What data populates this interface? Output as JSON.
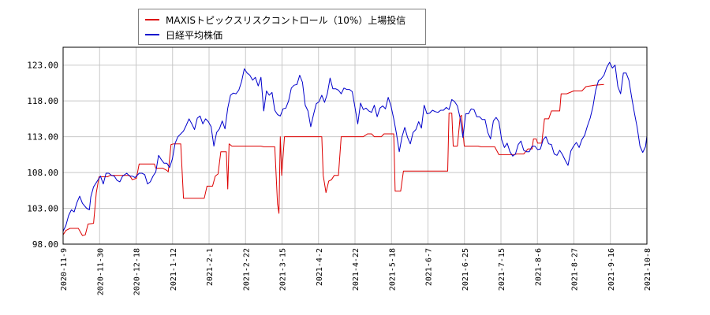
{
  "chart_data": {
    "type": "line",
    "title": "",
    "xlabel": "",
    "ylabel": "",
    "ylim": [
      98.0,
      125.5
    ],
    "grid": true,
    "legend_position": "top-left",
    "x_tick_labels": [
      "2020-11-9",
      "2020-11-30",
      "2020-12-18",
      "2021-1-12",
      "2021-2-1",
      "2021-2-22",
      "2021-3-15",
      "2021-4-2",
      "2021-4-22",
      "2021-5-18",
      "2021-6-7",
      "2021-6-25",
      "2021-7-15",
      "2021-8-6",
      "2021-8-27",
      "2021-9-16",
      "2021-10-8"
    ],
    "y_tick_labels": [
      "98.00",
      "103.00",
      "108.00",
      "113.00",
      "118.00",
      "123.00"
    ],
    "y_ticks": [
      98,
      103,
      108,
      113,
      118,
      123
    ],
    "series": [
      {
        "name": "MAXISトピックスリスクコントロール（10%）上場投信",
        "color": "#dd0000",
        "points": [
          [
            0,
            99.3
          ],
          [
            0.2,
            99.9
          ],
          [
            0.5,
            100.2
          ],
          [
            1.1,
            100.2
          ],
          [
            1.4,
            99.2
          ],
          [
            1.6,
            99.3
          ],
          [
            1.8,
            100.8
          ],
          [
            2.2,
            100.9
          ],
          [
            2.4,
            105.2
          ],
          [
            2.6,
            107.4
          ],
          [
            3.2,
            107.4
          ],
          [
            3.4,
            107.6
          ],
          [
            4.8,
            107.6
          ],
          [
            5.0,
            107.0
          ],
          [
            5.3,
            107.2
          ],
          [
            5.5,
            109.2
          ],
          [
            6.6,
            109.2
          ],
          [
            6.7,
            108.6
          ],
          [
            7.0,
            108.6
          ],
          [
            7.2,
            108.6
          ],
          [
            7.5,
            108.3
          ],
          [
            7.6,
            108.1
          ],
          [
            7.8,
            111.9
          ],
          [
            8.0,
            112.0
          ],
          [
            8.5,
            112.0
          ],
          [
            8.7,
            104.4
          ],
          [
            10.2,
            104.4
          ],
          [
            10.4,
            106.1
          ],
          [
            10.8,
            106.1
          ],
          [
            11.0,
            107.5
          ],
          [
            11.2,
            107.8
          ],
          [
            11.4,
            110.9
          ],
          [
            11.8,
            110.9
          ],
          [
            11.9,
            105.7
          ],
          [
            12.0,
            112.0
          ],
          [
            12.2,
            111.7
          ],
          [
            14.3,
            111.7
          ],
          [
            14.5,
            111.6
          ],
          [
            15.3,
            111.6
          ],
          [
            15.5,
            103.6
          ],
          [
            15.6,
            102.3
          ],
          [
            15.7,
            113.0
          ],
          [
            15.8,
            107.6
          ],
          [
            16.0,
            113.0
          ],
          [
            17.5,
            113.0
          ],
          [
            18.7,
            113.0
          ],
          [
            18.8,
            107.6
          ],
          [
            19.0,
            105.2
          ],
          [
            19.2,
            106.8
          ],
          [
            19.4,
            107.0
          ],
          [
            19.6,
            107.6
          ],
          [
            19.9,
            107.6
          ],
          [
            20.1,
            113.0
          ],
          [
            21.7,
            113.0
          ],
          [
            22.0,
            113.4
          ],
          [
            22.3,
            113.4
          ],
          [
            22.5,
            113.0
          ],
          [
            23.0,
            113.0
          ],
          [
            23.2,
            113.4
          ],
          [
            23.9,
            113.4
          ],
          [
            24.0,
            105.4
          ],
          [
            24.4,
            105.4
          ],
          [
            24.6,
            108.2
          ],
          [
            27.8,
            108.2
          ],
          [
            27.9,
            116.3
          ],
          [
            28.1,
            116.3
          ],
          [
            28.2,
            111.7
          ],
          [
            28.5,
            111.7
          ],
          [
            28.7,
            115.8
          ],
          [
            28.8,
            116.0
          ],
          [
            29.0,
            111.7
          ],
          [
            30.0,
            111.7
          ],
          [
            30.2,
            111.6
          ],
          [
            31.2,
            111.6
          ],
          [
            31.5,
            110.5
          ],
          [
            32.6,
            110.5
          ],
          [
            32.8,
            110.6
          ],
          [
            33.3,
            110.6
          ],
          [
            33.6,
            111.3
          ],
          [
            33.9,
            111.3
          ],
          [
            34.0,
            112.7
          ],
          [
            34.2,
            112.7
          ],
          [
            34.3,
            112.1
          ],
          [
            34.6,
            112.1
          ],
          [
            34.8,
            115.5
          ],
          [
            35.1,
            115.5
          ],
          [
            35.3,
            116.6
          ],
          [
            35.5,
            116.6
          ],
          [
            35.9,
            116.6
          ],
          [
            36.0,
            119.0
          ],
          [
            36.4,
            119.0
          ],
          [
            36.9,
            119.4
          ],
          [
            37.5,
            119.4
          ],
          [
            37.8,
            120.0
          ],
          [
            38.4,
            120.2
          ],
          [
            39.1,
            120.3
          ]
        ]
      },
      {
        "name": "日経平均株価",
        "color": "#0000cc",
        "points": [
          [
            0,
            99.8
          ],
          [
            0.2,
            100.6
          ],
          [
            0.4,
            102.0
          ],
          [
            0.6,
            102.8
          ],
          [
            0.8,
            102.5
          ],
          [
            1.0,
            103.8
          ],
          [
            1.2,
            104.7
          ],
          [
            1.4,
            103.7
          ],
          [
            1.7,
            103.0
          ],
          [
            1.9,
            102.8
          ],
          [
            2.0,
            104.6
          ],
          [
            2.2,
            106.0
          ],
          [
            2.5,
            106.9
          ],
          [
            2.7,
            107.5
          ],
          [
            2.9,
            106.4
          ],
          [
            3.1,
            107.9
          ],
          [
            3.3,
            107.9
          ],
          [
            3.5,
            107.6
          ],
          [
            3.7,
            107.5
          ],
          [
            3.9,
            106.9
          ],
          [
            4.1,
            106.7
          ],
          [
            4.3,
            107.5
          ],
          [
            4.6,
            107.9
          ],
          [
            4.8,
            107.5
          ],
          [
            5.0,
            107.5
          ],
          [
            5.2,
            107.3
          ],
          [
            5.5,
            107.9
          ],
          [
            5.7,
            107.9
          ],
          [
            5.9,
            107.7
          ],
          [
            6.1,
            106.4
          ],
          [
            6.3,
            106.7
          ],
          [
            6.5,
            107.5
          ],
          [
            6.7,
            108.1
          ],
          [
            6.9,
            110.4
          ],
          [
            7.1,
            109.8
          ],
          [
            7.3,
            109.3
          ],
          [
            7.5,
            109.3
          ],
          [
            7.7,
            108.7
          ],
          [
            7.9,
            109.9
          ],
          [
            8.1,
            112.1
          ],
          [
            8.3,
            113.0
          ],
          [
            8.5,
            113.4
          ],
          [
            8.7,
            113.8
          ],
          [
            8.9,
            114.6
          ],
          [
            9.1,
            115.5
          ],
          [
            9.3,
            114.8
          ],
          [
            9.5,
            114.0
          ],
          [
            9.7,
            115.6
          ],
          [
            9.9,
            115.9
          ],
          [
            10.1,
            114.8
          ],
          [
            10.3,
            115.5
          ],
          [
            10.5,
            115.1
          ],
          [
            10.7,
            114.4
          ],
          [
            10.9,
            111.7
          ],
          [
            11.1,
            113.6
          ],
          [
            11.3,
            114.1
          ],
          [
            11.5,
            115.2
          ],
          [
            11.7,
            114.1
          ],
          [
            11.9,
            117.0
          ],
          [
            12.1,
            118.8
          ],
          [
            12.3,
            119.1
          ],
          [
            12.5,
            119.0
          ],
          [
            12.7,
            119.5
          ],
          [
            12.9,
            120.7
          ],
          [
            13.1,
            122.5
          ],
          [
            13.3,
            121.9
          ],
          [
            13.5,
            121.6
          ],
          [
            13.7,
            120.9
          ],
          [
            13.9,
            121.3
          ],
          [
            14.1,
            120.1
          ],
          [
            14.3,
            121.3
          ],
          [
            14.5,
            116.6
          ],
          [
            14.7,
            119.4
          ],
          [
            14.9,
            118.8
          ],
          [
            15.1,
            119.2
          ],
          [
            15.3,
            116.7
          ],
          [
            15.5,
            116.1
          ],
          [
            15.7,
            115.9
          ],
          [
            15.9,
            116.9
          ],
          [
            16.1,
            117.0
          ],
          [
            16.3,
            118.0
          ],
          [
            16.5,
            119.8
          ],
          [
            16.7,
            120.2
          ],
          [
            16.9,
            120.3
          ],
          [
            17.1,
            121.6
          ],
          [
            17.3,
            120.6
          ],
          [
            17.5,
            117.4
          ],
          [
            17.7,
            116.6
          ],
          [
            17.9,
            114.4
          ],
          [
            18.1,
            116.1
          ],
          [
            18.3,
            117.6
          ],
          [
            18.5,
            117.9
          ],
          [
            18.7,
            118.8
          ],
          [
            18.9,
            117.8
          ],
          [
            19.1,
            119.0
          ],
          [
            19.3,
            121.2
          ],
          [
            19.5,
            119.7
          ],
          [
            19.7,
            119.7
          ],
          [
            19.9,
            119.5
          ],
          [
            20.1,
            119.0
          ],
          [
            20.3,
            119.8
          ],
          [
            20.5,
            119.6
          ],
          [
            20.7,
            119.6
          ],
          [
            20.9,
            119.3
          ],
          [
            21.1,
            117.1
          ],
          [
            21.3,
            114.8
          ],
          [
            21.5,
            117.7
          ],
          [
            21.7,
            116.8
          ],
          [
            21.9,
            117.0
          ],
          [
            22.1,
            116.6
          ],
          [
            22.3,
            116.4
          ],
          [
            22.5,
            117.4
          ],
          [
            22.7,
            115.8
          ],
          [
            22.9,
            117.0
          ],
          [
            23.1,
            117.3
          ],
          [
            23.3,
            116.9
          ],
          [
            23.5,
            118.5
          ],
          [
            23.7,
            117.3
          ],
          [
            23.9,
            115.5
          ],
          [
            24.1,
            113.4
          ],
          [
            24.3,
            110.9
          ],
          [
            24.5,
            113.0
          ],
          [
            24.7,
            114.3
          ],
          [
            24.9,
            112.9
          ],
          [
            25.1,
            112.0
          ],
          [
            25.3,
            113.6
          ],
          [
            25.5,
            114.0
          ],
          [
            25.7,
            115.1
          ],
          [
            25.9,
            114.2
          ],
          [
            26.1,
            117.4
          ],
          [
            26.3,
            116.2
          ],
          [
            26.5,
            116.3
          ],
          [
            26.7,
            116.7
          ],
          [
            26.9,
            116.5
          ],
          [
            27.1,
            116.4
          ],
          [
            27.3,
            116.7
          ],
          [
            27.5,
            116.7
          ],
          [
            27.7,
            117.1
          ],
          [
            27.9,
            116.8
          ],
          [
            28.1,
            118.2
          ],
          [
            28.3,
            117.9
          ],
          [
            28.5,
            117.3
          ],
          [
            28.7,
            115.6
          ],
          [
            28.9,
            112.9
          ],
          [
            29.1,
            116.2
          ],
          [
            29.3,
            116.2
          ],
          [
            29.5,
            116.9
          ],
          [
            29.7,
            116.8
          ],
          [
            29.9,
            115.8
          ],
          [
            30.1,
            115.8
          ],
          [
            30.3,
            115.4
          ],
          [
            30.5,
            115.4
          ],
          [
            30.7,
            113.6
          ],
          [
            30.9,
            112.7
          ],
          [
            31.1,
            115.2
          ],
          [
            31.3,
            115.7
          ],
          [
            31.5,
            115.1
          ],
          [
            31.7,
            112.6
          ],
          [
            31.9,
            111.5
          ],
          [
            32.1,
            112.1
          ],
          [
            32.3,
            110.9
          ],
          [
            32.5,
            110.3
          ],
          [
            32.7,
            110.6
          ],
          [
            32.9,
            111.9
          ],
          [
            33.1,
            112.4
          ],
          [
            33.3,
            111.1
          ],
          [
            33.5,
            110.9
          ],
          [
            33.7,
            110.9
          ],
          [
            33.9,
            111.7
          ],
          [
            34.1,
            111.7
          ],
          [
            34.3,
            111.2
          ],
          [
            34.5,
            111.3
          ],
          [
            34.7,
            112.6
          ],
          [
            34.9,
            113.0
          ],
          [
            35.1,
            112.0
          ],
          [
            35.3,
            111.9
          ],
          [
            35.5,
            110.6
          ],
          [
            35.7,
            110.4
          ],
          [
            35.9,
            111.1
          ],
          [
            36.1,
            110.5
          ],
          [
            36.3,
            109.7
          ],
          [
            36.5,
            109.0
          ],
          [
            36.7,
            111.0
          ],
          [
            36.9,
            111.7
          ],
          [
            37.1,
            112.2
          ],
          [
            37.3,
            111.5
          ],
          [
            37.5,
            112.6
          ],
          [
            37.7,
            113.2
          ],
          [
            37.9,
            114.5
          ],
          [
            38.1,
            115.6
          ],
          [
            38.3,
            117.2
          ],
          [
            38.5,
            119.5
          ],
          [
            38.7,
            120.8
          ],
          [
            38.9,
            121.1
          ],
          [
            39.1,
            121.6
          ],
          [
            39.3,
            122.7
          ],
          [
            39.5,
            123.4
          ],
          [
            39.7,
            122.6
          ],
          [
            39.9,
            123.0
          ],
          [
            40.1,
            120.0
          ],
          [
            40.3,
            119.0
          ],
          [
            40.5,
            121.9
          ],
          [
            40.7,
            121.9
          ],
          [
            40.9,
            120.9
          ],
          [
            41.1,
            118.5
          ],
          [
            41.3,
            116.3
          ],
          [
            41.5,
            114.3
          ],
          [
            41.7,
            111.7
          ],
          [
            41.9,
            110.8
          ],
          [
            42.1,
            111.6
          ],
          [
            42.2,
            113.1
          ]
        ]
      }
    ]
  }
}
